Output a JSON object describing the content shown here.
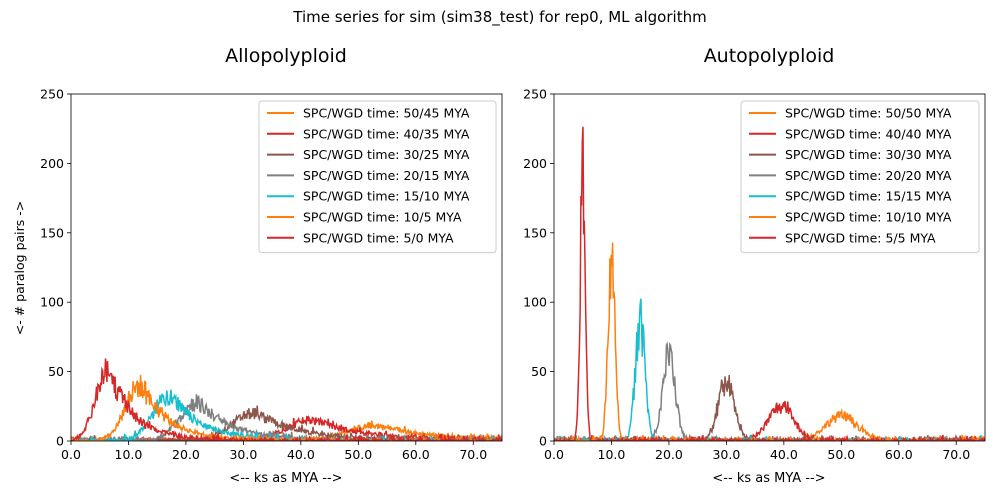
{
  "suptitle": "Time series for sim (sim38_test) for rep0, ML algorithm",
  "chart_data": [
    {
      "type": "line",
      "title": "Allopolyploid",
      "xlabel": "<-- ks as MYA -->",
      "ylabel": "<- # paralog pairs ->",
      "xlim": [
        0,
        75
      ],
      "ylim": [
        0,
        250
      ],
      "xticks": [
        "0.0",
        "10.0",
        "20.0",
        "30.0",
        "40.0",
        "50.0",
        "60.0",
        "70.0"
      ],
      "yticks": [
        "0",
        "50",
        "100",
        "150",
        "200",
        "250"
      ],
      "legend_position": "top-right",
      "series": [
        {
          "name": "SPC/WGD time: 50/45 MYA",
          "color": "#ff7f0e",
          "peak_x": 53,
          "peak_y": 11,
          "spread": 5.0
        },
        {
          "name": "SPC/WGD time: 40/35 MYA",
          "color": "#d62728",
          "peak_x": 42,
          "peak_y": 15,
          "spread": 4.5
        },
        {
          "name": "SPC/WGD time: 30/25 MYA",
          "color": "#8c564b",
          "peak_x": 32,
          "peak_y": 20,
          "spread": 4.0
        },
        {
          "name": "SPC/WGD time: 20/15 MYA",
          "color": "#7f7f7f",
          "peak_x": 22,
          "peak_y": 28,
          "spread": 3.0
        },
        {
          "name": "SPC/WGD time: 15/10 MYA",
          "color": "#17becf",
          "peak_x": 17,
          "peak_y": 33,
          "spread": 2.8
        },
        {
          "name": "SPC/WGD time: 10/5 MYA",
          "color": "#ff7f0e",
          "peak_x": 12,
          "peak_y": 40,
          "spread": 2.5
        },
        {
          "name": "SPC/WGD time: 5/0 MYA",
          "color": "#d62728",
          "peak_x": 6.5,
          "peak_y": 50,
          "spread": 2.2
        }
      ]
    },
    {
      "type": "line",
      "title": "Autopolyploid",
      "xlabel": "<-- ks as MYA -->",
      "ylabel": "",
      "xlim": [
        0,
        75
      ],
      "ylim": [
        0,
        250
      ],
      "xticks": [
        "0.0",
        "10.0",
        "20.0",
        "30.0",
        "40.0",
        "50.0",
        "60.0",
        "70.0"
      ],
      "yticks": [
        "0",
        "50",
        "100",
        "150",
        "200",
        "250"
      ],
      "legend_position": "top-right",
      "series": [
        {
          "name": "SPC/WGD time: 50/50 MYA",
          "color": "#ff7f0e",
          "peak_x": 50,
          "peak_y": 18,
          "spread": 2.8
        },
        {
          "name": "SPC/WGD time: 40/40 MYA",
          "color": "#d62728",
          "peak_x": 39.5,
          "peak_y": 25,
          "spread": 2.2
        },
        {
          "name": "SPC/WGD time: 30/30 MYA",
          "color": "#8c564b",
          "peak_x": 30,
          "peak_y": 42,
          "spread": 1.4
        },
        {
          "name": "SPC/WGD time: 20/20 MYA",
          "color": "#7f7f7f",
          "peak_x": 20,
          "peak_y": 62,
          "spread": 1.1
        },
        {
          "name": "SPC/WGD time: 15/15 MYA",
          "color": "#17becf",
          "peak_x": 15,
          "peak_y": 85,
          "spread": 0.85
        },
        {
          "name": "SPC/WGD time: 10/10 MYA",
          "color": "#ff7f0e",
          "peak_x": 10,
          "peak_y": 130,
          "spread": 0.6
        },
        {
          "name": "SPC/WGD time: 5/5 MYA",
          "color": "#d62728",
          "peak_x": 5,
          "peak_y": 190,
          "spread": 0.45
        }
      ]
    }
  ]
}
